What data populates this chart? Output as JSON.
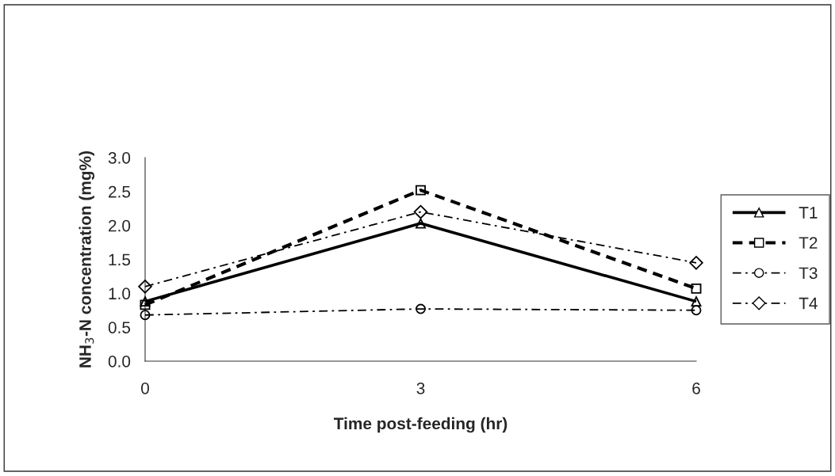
{
  "chart_data": {
    "type": "line",
    "xlabel": "Time post-feeding (hr)",
    "ylabel": "NH$_{3}$-N concentration (mg%)",
    "x": [
      0,
      3,
      6
    ],
    "xlim": [
      0,
      6
    ],
    "xticks": [
      0,
      3,
      6
    ],
    "ylim": [
      0,
      3
    ],
    "yticks": [
      {
        "value": 0,
        "label": "0.0"
      },
      {
        "value": 0.5,
        "label": "0.5"
      },
      {
        "value": 1,
        "label": "1.0"
      },
      {
        "value": 1.5,
        "label": "1.5"
      },
      {
        "value": 2,
        "label": "2.0"
      },
      {
        "value": 2.5,
        "label": "2.5"
      },
      {
        "value": 3,
        "label": "3.0"
      }
    ],
    "grid": false,
    "legend": "right",
    "series": [
      {
        "name": "T1",
        "color": "#000000",
        "marker": "triangle",
        "line_style": "solid",
        "values": [
          0.88,
          2.03,
          0.88
        ]
      },
      {
        "name": "T2",
        "color": "#000000",
        "marker": "square",
        "line_style": "dashed",
        "values": [
          0.83,
          2.52,
          1.07
        ]
      },
      {
        "name": "T3",
        "color": "#000000",
        "marker": "circle",
        "line_style": "dashdot",
        "values": [
          0.68,
          0.77,
          0.75
        ]
      },
      {
        "name": "T4",
        "color": "#000000",
        "marker": "diamond",
        "line_style": "dashdot",
        "values": [
          1.1,
          2.2,
          1.45
        ]
      }
    ]
  }
}
